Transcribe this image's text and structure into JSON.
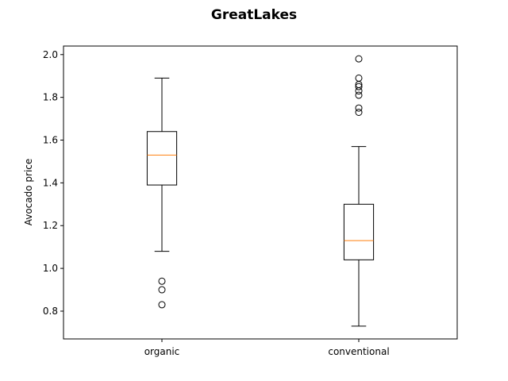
{
  "chart_data": {
    "type": "boxplot",
    "title": "GreatLakes",
    "xlabel": "",
    "ylabel": "Avocado price",
    "ylim": [
      0.67,
      2.04
    ],
    "yticks": [
      "0.8",
      "1.0",
      "1.2",
      "1.4",
      "1.6",
      "1.8",
      "2.0"
    ],
    "grid": false,
    "categories": [
      "organic",
      "conventional"
    ],
    "boxes": [
      {
        "category": "organic",
        "whisker_low": 1.08,
        "q1": 1.39,
        "median": 1.53,
        "q3": 1.64,
        "whisker_high": 1.89,
        "outliers": [
          0.83,
          0.9,
          0.94
        ]
      },
      {
        "category": "conventional",
        "whisker_low": 0.73,
        "q1": 1.04,
        "median": 1.13,
        "q3": 1.3,
        "whisker_high": 1.57,
        "outliers": [
          1.73,
          1.75,
          1.81,
          1.83,
          1.85,
          1.86,
          1.89,
          1.98
        ]
      }
    ],
    "colors": {
      "box": "#000000",
      "median": "#ff7f0e",
      "outlier": "#000000"
    }
  }
}
